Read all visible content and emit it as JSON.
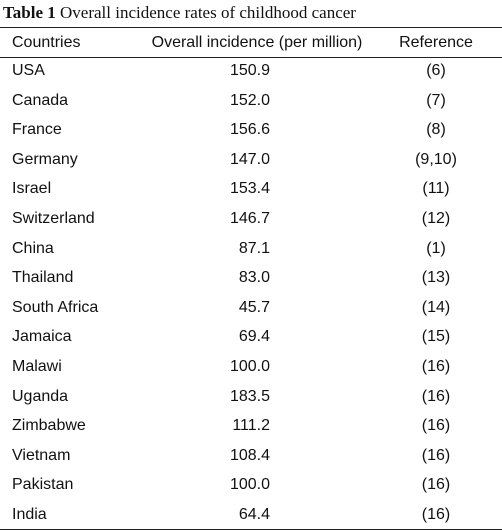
{
  "caption": {
    "label": "Table 1",
    "text": "Overall incidence rates of childhood cancer"
  },
  "table": {
    "header": [
      "Countries",
      "Overall incidence (per million)",
      "Reference"
    ],
    "rows": [
      [
        "USA",
        "150.9",
        "(6)"
      ],
      [
        "Canada",
        "152.0",
        "(7)"
      ],
      [
        "France",
        "156.6",
        "(8)"
      ],
      [
        "Germany",
        "147.0",
        "(9,10)"
      ],
      [
        "Israel",
        "153.4",
        "(11)"
      ],
      [
        "Switzerland",
        "146.7",
        "(12)"
      ],
      [
        "China",
        "87.1",
        "(1)"
      ],
      [
        "Thailand",
        "83.0",
        "(13)"
      ],
      [
        "South Africa",
        "45.7",
        "(14)"
      ],
      [
        "Jamaica",
        "69.4",
        "(15)"
      ],
      [
        "Malawi",
        "100.0",
        "(16)"
      ],
      [
        "Uganda",
        "183.5",
        "(16)"
      ],
      [
        "Zimbabwe",
        "111.2",
        "(16)"
      ],
      [
        "Vietnam",
        "108.4",
        "(16)"
      ],
      [
        "Pakistan",
        "100.0",
        "(16)"
      ],
      [
        "India",
        "64.4",
        "(16)"
      ]
    ]
  }
}
